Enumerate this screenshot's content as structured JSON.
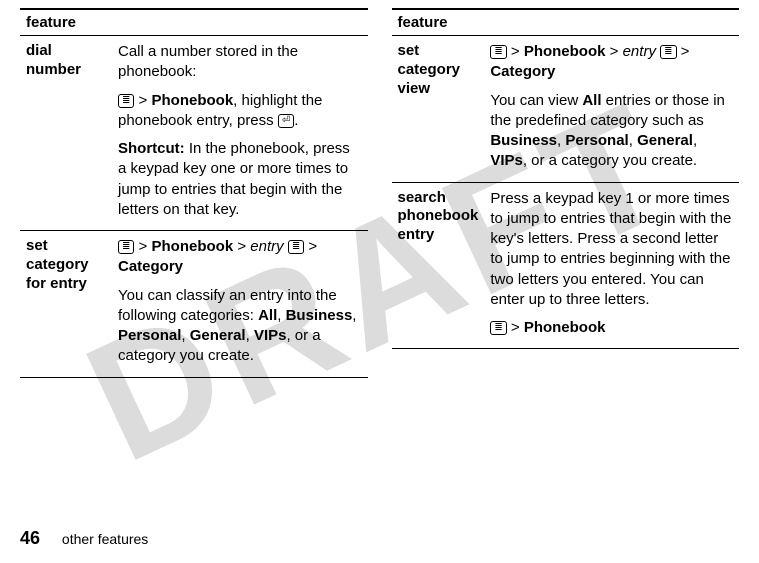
{
  "watermark": "DRAFT",
  "icons": {
    "menu": "≣",
    "send": "⏎"
  },
  "left": {
    "header": "feature",
    "rows": [
      {
        "label": "dial number",
        "body": {
          "p1": "Call a number stored in the phonebook:",
          "p2a": " > ",
          "p2b": "Phonebook",
          "p2c": ", highlight the phonebook entry, press ",
          "p2d": ".",
          "p3a": "Shortcut:",
          "p3b": " In the phonebook, press a keypad key one or more times to jump to entries that begin with the letters on that key."
        }
      },
      {
        "label": "set category for entry",
        "body": {
          "p1a": " > ",
          "p1b": "Phonebook",
          "p1c": " > ",
          "p1d": "entry",
          "p1e": " ",
          "p1f": " > ",
          "p1g": "Category",
          "p2a": "You can classify an entry into the following categories: ",
          "p2b": "All",
          "p2c": ", ",
          "p2d": "Business",
          "p2e": ", ",
          "p2f": "Personal",
          "p2g": ", ",
          "p2h": "General",
          "p2i": ", ",
          "p2j": "VIPs",
          "p2k": ", or a category you create."
        }
      }
    ]
  },
  "right": {
    "header": "feature",
    "rows": [
      {
        "label": "set category view",
        "body": {
          "p1a": " > ",
          "p1b": "Phonebook",
          "p1c": " > ",
          "p1d": "entry",
          "p1e": " ",
          "p1f": " > ",
          "p1g": "Category",
          "p2a": "You can view ",
          "p2b": "All",
          "p2c": " entries or those in the predefined category such as ",
          "p2d": "Business",
          "p2e": ", ",
          "p2f": "Personal",
          "p2g": ", ",
          "p2h": "General",
          "p2i": ", ",
          "p2j": "VIPs",
          "p2k": ", or a category you create."
        }
      },
      {
        "label": "search phonebook entry",
        "body": {
          "p1": "Press a keypad key 1 or more times to jump to entries that begin with the key's letters. Press a second letter to jump to entries beginning with the two letters you entered. You can enter up to three letters.",
          "p2a": " > ",
          "p2b": "Phonebook"
        }
      }
    ]
  },
  "footer": {
    "page": "46",
    "section": "other features"
  }
}
